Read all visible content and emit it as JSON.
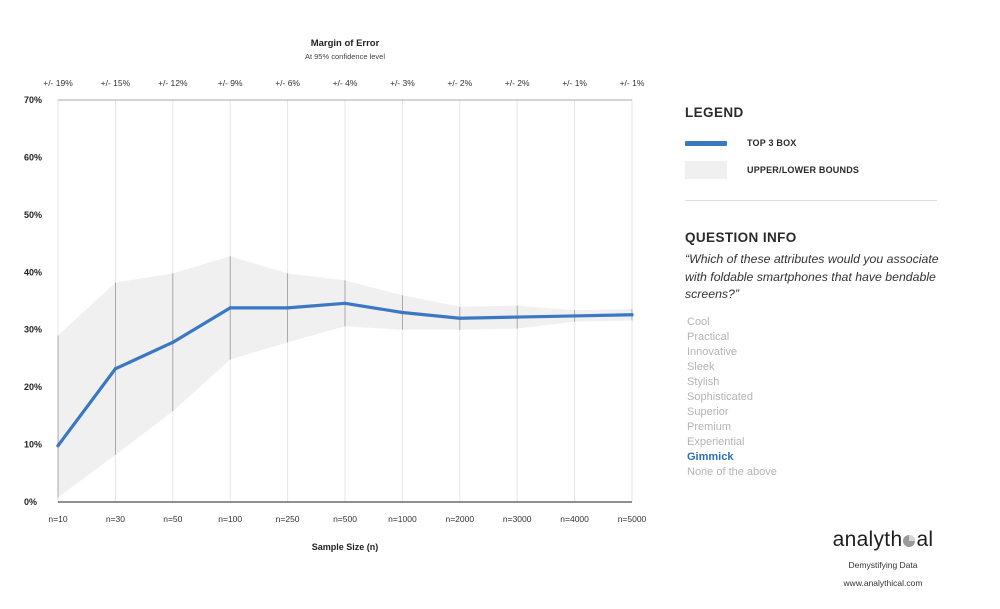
{
  "chart_data": {
    "type": "line",
    "title": "Margin of Error",
    "subtitle": "At 95% confidence level",
    "xlabel": "Sample Size (n)",
    "ylabel": "",
    "categories": [
      "n=10",
      "n=30",
      "n=50",
      "n=100",
      "n=250",
      "n=500",
      "n=1000",
      "n=2000",
      "n=3000",
      "n=4000",
      "n=5000"
    ],
    "top_axis_labels": [
      "+/- 19%",
      "+/- 15%",
      "+/- 12%",
      "+/- 9%",
      "+/- 6%",
      "+/- 4%",
      "+/- 3%",
      "+/- 2%",
      "+/- 2%",
      "+/- 1%",
      "+/- 1%"
    ],
    "ylim": [
      0,
      70
    ],
    "yticks": [
      0,
      10,
      20,
      30,
      40,
      50,
      60,
      70
    ],
    "ytick_labels": [
      "0%",
      "10%",
      "20%",
      "30%",
      "40%",
      "50%",
      "60%",
      "70%"
    ],
    "grid": "vertical",
    "series": [
      {
        "name": "TOP 3 BOX",
        "values": [
          9.8,
          23.2,
          27.8,
          33.8,
          33.8,
          34.6,
          33.0,
          32.0,
          32.2,
          32.4,
          32.6
        ],
        "color": "#3a78c4"
      }
    ],
    "bounds": {
      "name": "UPPER/LOWER BOUNDS",
      "upper": [
        29.0,
        38.2,
        39.8,
        42.8,
        39.8,
        38.6,
        36.0,
        34.0,
        34.2,
        33.4,
        33.6
      ],
      "lower": [
        0.8,
        8.2,
        15.8,
        24.8,
        27.8,
        30.6,
        30.0,
        30.0,
        30.2,
        31.4,
        31.6
      ],
      "color": "#f0f0f0"
    }
  },
  "legend": {
    "heading": "LEGEND",
    "items": [
      {
        "label": "TOP 3 BOX",
        "kind": "line",
        "color": "#3a78c4"
      },
      {
        "label": "UPPER/LOWER BOUNDS",
        "kind": "band",
        "color": "#f0f0f0"
      }
    ]
  },
  "question": {
    "heading": "QUESTION INFO",
    "text": "“Which of these attributes would you associate with foldable smartphones that have bendable screens?”",
    "options": [
      "Cool",
      "Practical",
      "Innovative",
      "Sleek",
      "Stylish",
      "Sophisticated",
      "Superior",
      "Premium",
      "Experiential",
      "Gimmick",
      "None of the above"
    ],
    "selected": "Gimmick"
  },
  "brand": {
    "name_part1": "analyth",
    "name_part2": "al",
    "tagline": "Demystifying Data",
    "url": "www.analythical.com"
  }
}
